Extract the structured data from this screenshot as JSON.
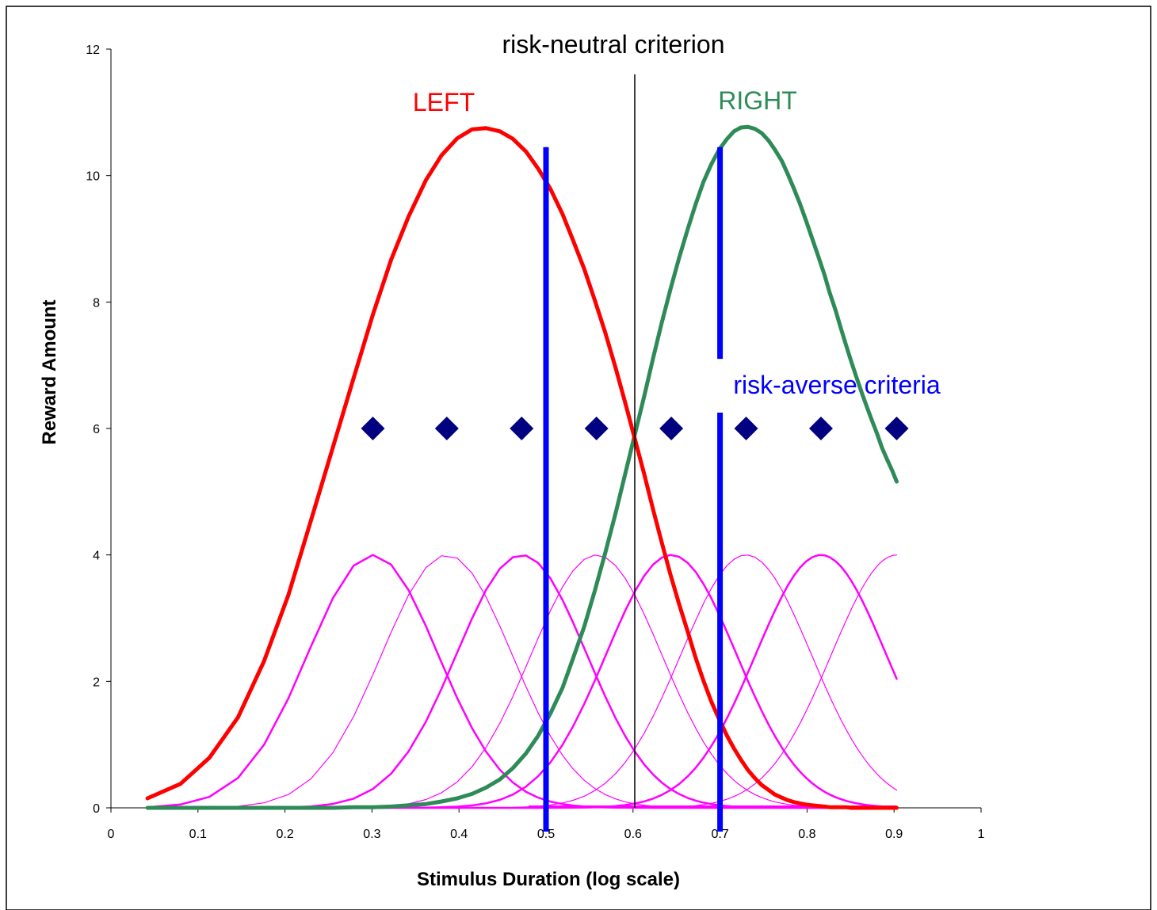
{
  "chart_data": {
    "type": "line",
    "xlabel": "Stimulus Duration (log scale)",
    "ylabel": "Reward Amount",
    "xlim": [
      0,
      1
    ],
    "ylim": [
      0,
      12
    ],
    "x_ticks": [
      "0",
      "0.1",
      "0.2",
      "0.3",
      "0.4",
      "0.5",
      "0.6",
      "0.7",
      "0.8",
      "0.9",
      "1"
    ],
    "y_ticks": [
      "0",
      "2",
      "4",
      "6",
      "8",
      "10",
      "12"
    ],
    "grid": false,
    "colors": {
      "left": "#ff0000",
      "right": "#2e8b57",
      "component": "#ff00ff",
      "criterion": "#0000ff",
      "diamond": "#000080",
      "neutral": "#000000"
    },
    "series": [
      {
        "name": "LEFT",
        "x": [
          0.042,
          0.08,
          0.113,
          0.146,
          0.176,
          0.204,
          0.23,
          0.255,
          0.279,
          0.301,
          0.322,
          0.342,
          0.362,
          0.38,
          0.398,
          0.415,
          0.431,
          0.447,
          0.462,
          0.477,
          0.491,
          0.505,
          0.519,
          0.531,
          0.544,
          0.556,
          0.568,
          0.58,
          0.591,
          0.602,
          0.613,
          0.623,
          0.633,
          0.643,
          0.653,
          0.663,
          0.672,
          0.681,
          0.69,
          0.699,
          0.708,
          0.716,
          0.724,
          0.732,
          0.74,
          0.748,
          0.756,
          0.763,
          0.771,
          0.778,
          0.785,
          0.792,
          0.799,
          0.806,
          0.813,
          0.82,
          0.826,
          0.833,
          0.839,
          0.845,
          0.851,
          0.857,
          0.863,
          0.869,
          0.875,
          0.881,
          0.886,
          0.892,
          0.898,
          0.903
        ],
        "y": [
          0.15,
          0.38,
          0.79,
          1.43,
          2.32,
          3.37,
          4.55,
          5.7,
          6.8,
          7.8,
          8.67,
          9.35,
          9.93,
          10.32,
          10.59,
          10.73,
          10.75,
          10.7,
          10.58,
          10.38,
          10.11,
          9.79,
          9.39,
          8.98,
          8.52,
          8.03,
          7.52,
          6.96,
          6.41,
          5.84,
          5.27,
          4.72,
          4.2,
          3.69,
          3.22,
          2.78,
          2.37,
          2.01,
          1.68,
          1.4,
          1.14,
          0.94,
          0.76,
          0.6,
          0.47,
          0.36,
          0.28,
          0.21,
          0.16,
          0.12,
          0.09,
          0.07,
          0.05,
          0.04,
          0.03,
          0.02,
          0.01,
          0.01,
          0.01,
          0.01,
          0,
          0,
          0,
          0,
          0,
          0,
          0,
          0,
          0,
          0
        ]
      },
      {
        "name": "RIGHT",
        "x": [
          0.042,
          0.08,
          0.113,
          0.146,
          0.176,
          0.204,
          0.23,
          0.255,
          0.279,
          0.301,
          0.322,
          0.342,
          0.362,
          0.38,
          0.398,
          0.415,
          0.431,
          0.447,
          0.462,
          0.477,
          0.491,
          0.505,
          0.519,
          0.531,
          0.544,
          0.556,
          0.568,
          0.58,
          0.591,
          0.602,
          0.613,
          0.623,
          0.633,
          0.643,
          0.653,
          0.663,
          0.672,
          0.681,
          0.69,
          0.699,
          0.708,
          0.716,
          0.724,
          0.732,
          0.74,
          0.748,
          0.756,
          0.763,
          0.771,
          0.778,
          0.785,
          0.792,
          0.799,
          0.806,
          0.813,
          0.82,
          0.826,
          0.833,
          0.839,
          0.845,
          0.851,
          0.857,
          0.863,
          0.869,
          0.875,
          0.881,
          0.886,
          0.892,
          0.898,
          0.903
        ],
        "y": [
          0,
          0,
          0,
          0,
          0,
          0,
          0,
          0,
          0.01,
          0.01,
          0.02,
          0.04,
          0.06,
          0.1,
          0.15,
          0.22,
          0.32,
          0.45,
          0.63,
          0.86,
          1.14,
          1.49,
          1.9,
          2.36,
          2.87,
          3.43,
          4.03,
          4.66,
          5.28,
          5.9,
          6.52,
          7.11,
          7.67,
          8.2,
          8.7,
          9.16,
          9.55,
          9.9,
          10.18,
          10.41,
          10.58,
          10.7,
          10.76,
          10.77,
          10.74,
          10.67,
          10.55,
          10.41,
          10.23,
          10.02,
          9.79,
          9.55,
          9.28,
          9,
          8.72,
          8.43,
          8.15,
          7.86,
          7.58,
          7.31,
          7.05,
          6.8,
          6.56,
          6.33,
          6.11,
          5.9,
          5.7,
          5.51,
          5.33,
          5.16
        ]
      },
      {
        "name": "",
        "center": 0.301,
        "peak": 4,
        "sigma": 0.075
      },
      {
        "name": "",
        "center": 0.386,
        "peak": 4,
        "sigma": 0.075
      },
      {
        "name": "",
        "center": 0.472,
        "peak": 4,
        "sigma": 0.075
      },
      {
        "name": "",
        "center": 0.558,
        "peak": 4,
        "sigma": 0.075
      },
      {
        "name": "",
        "center": 0.644,
        "peak": 4,
        "sigma": 0.075
      },
      {
        "name": "",
        "center": 0.73,
        "peak": 4,
        "sigma": 0.075
      },
      {
        "name": "",
        "center": 0.816,
        "peak": 4,
        "sigma": 0.075
      },
      {
        "name": "",
        "center": 0.903,
        "peak": 4,
        "sigma": 0.075
      }
    ],
    "diamonds": {
      "x": [
        0.301,
        0.386,
        0.472,
        0.558,
        0.644,
        0.73,
        0.816,
        0.903
      ],
      "y": 6
    },
    "criteria": {
      "neutral_x": 0.602,
      "averse_x": [
        0.5,
        0.7
      ]
    },
    "annotations": {
      "neutral_label": "risk-neutral criterion",
      "averse_label": "risk-averse criteria",
      "left_label": "LEFT",
      "right_label": "RIGHT"
    }
  }
}
